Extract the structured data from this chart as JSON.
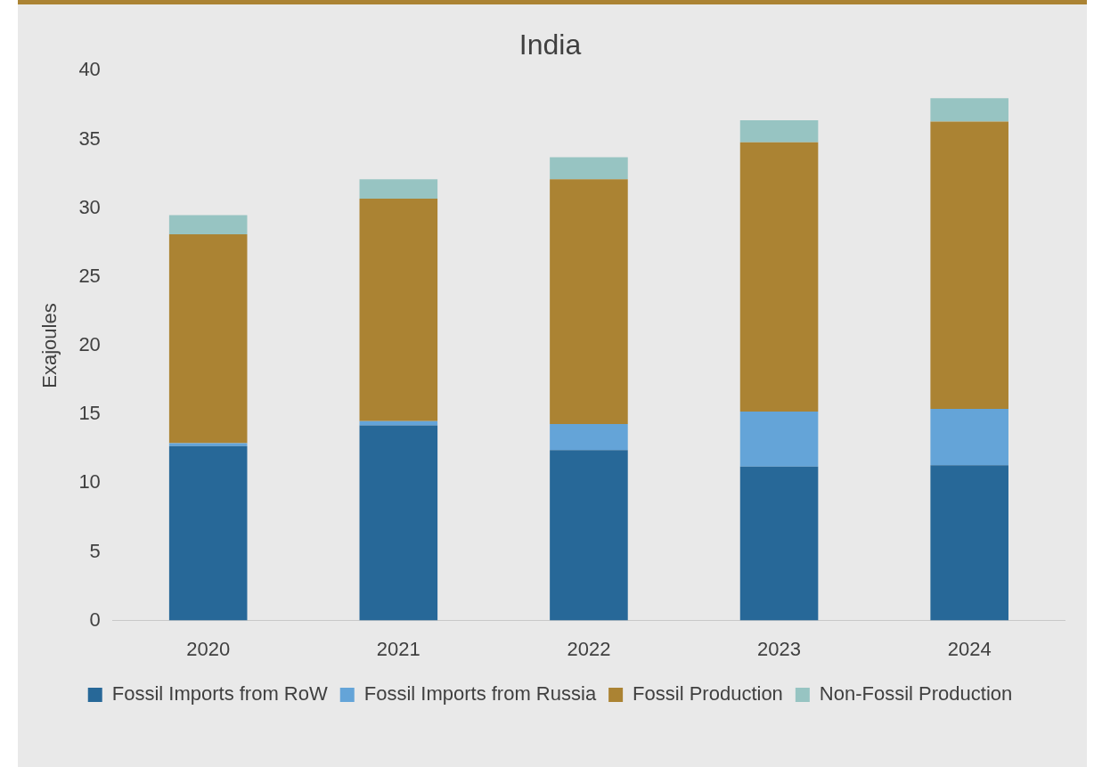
{
  "chart_data": {
    "type": "bar",
    "title": "India",
    "ylabel": "Exajoules",
    "categories": [
      "2020",
      "2021",
      "2022",
      "2023",
      "2024"
    ],
    "stacked": true,
    "ylim": [
      0,
      40
    ],
    "yticks": [
      0,
      5,
      10,
      15,
      20,
      25,
      30,
      35,
      40
    ],
    "grid": false,
    "legend": "bottom",
    "series": [
      {
        "name": "Fossil Imports from RoW",
        "color": "#276898",
        "values": [
          12.7,
          14.2,
          12.4,
          11.2,
          11.3
        ]
      },
      {
        "name": "Fossil Imports from Russia",
        "color": "#64a4d8",
        "values": [
          0.2,
          0.3,
          1.9,
          4.0,
          4.1
        ]
      },
      {
        "name": "Fossil Production",
        "color": "#ab8333",
        "values": [
          15.2,
          16.2,
          17.8,
          19.6,
          20.9
        ]
      },
      {
        "name": "Non-Fossil Production",
        "color": "#97c4c2",
        "values": [
          1.4,
          1.4,
          1.6,
          1.6,
          1.7
        ]
      }
    ]
  }
}
